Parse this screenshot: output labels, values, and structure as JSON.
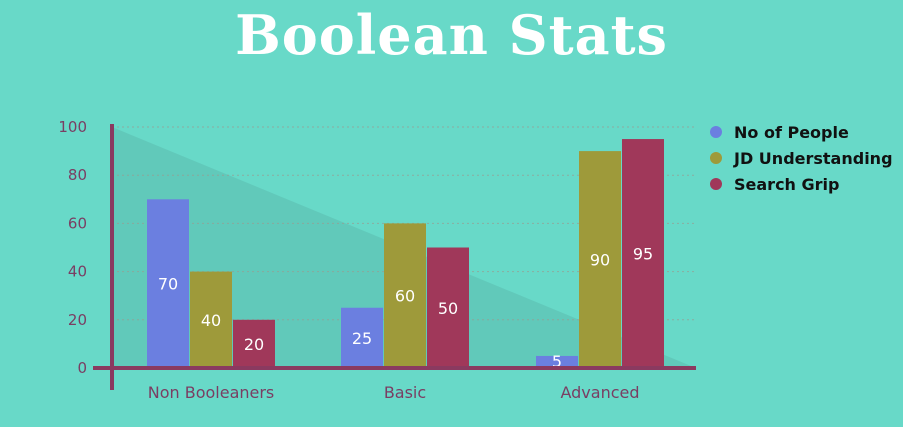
{
  "title": "Boolean Stats",
  "colors": {
    "background": "#68d9c8",
    "axis": "#8a3a60",
    "triangle": "#5fc3b6",
    "gridline": "#9a9a8f"
  },
  "chart_data": {
    "type": "bar",
    "title": "Boolean Stats",
    "xlabel": "",
    "ylabel": "",
    "categories": [
      "Non Booleaners",
      "Basic",
      "Advanced"
    ],
    "series": [
      {
        "name": "No of People",
        "color": "#6b7fe0",
        "values": [
          70,
          25,
          5
        ]
      },
      {
        "name": "JD Understanding",
        "color": "#9e9a3a",
        "values": [
          40,
          60,
          90
        ]
      },
      {
        "name": "Search Grip",
        "color": "#a0385a",
        "values": [
          20,
          50,
          95
        ]
      }
    ],
    "ylim": [
      0,
      100
    ],
    "yticks": [
      0,
      20,
      40,
      60,
      80,
      100
    ],
    "grid": true,
    "legend_position": "right",
    "data_labels": true
  }
}
